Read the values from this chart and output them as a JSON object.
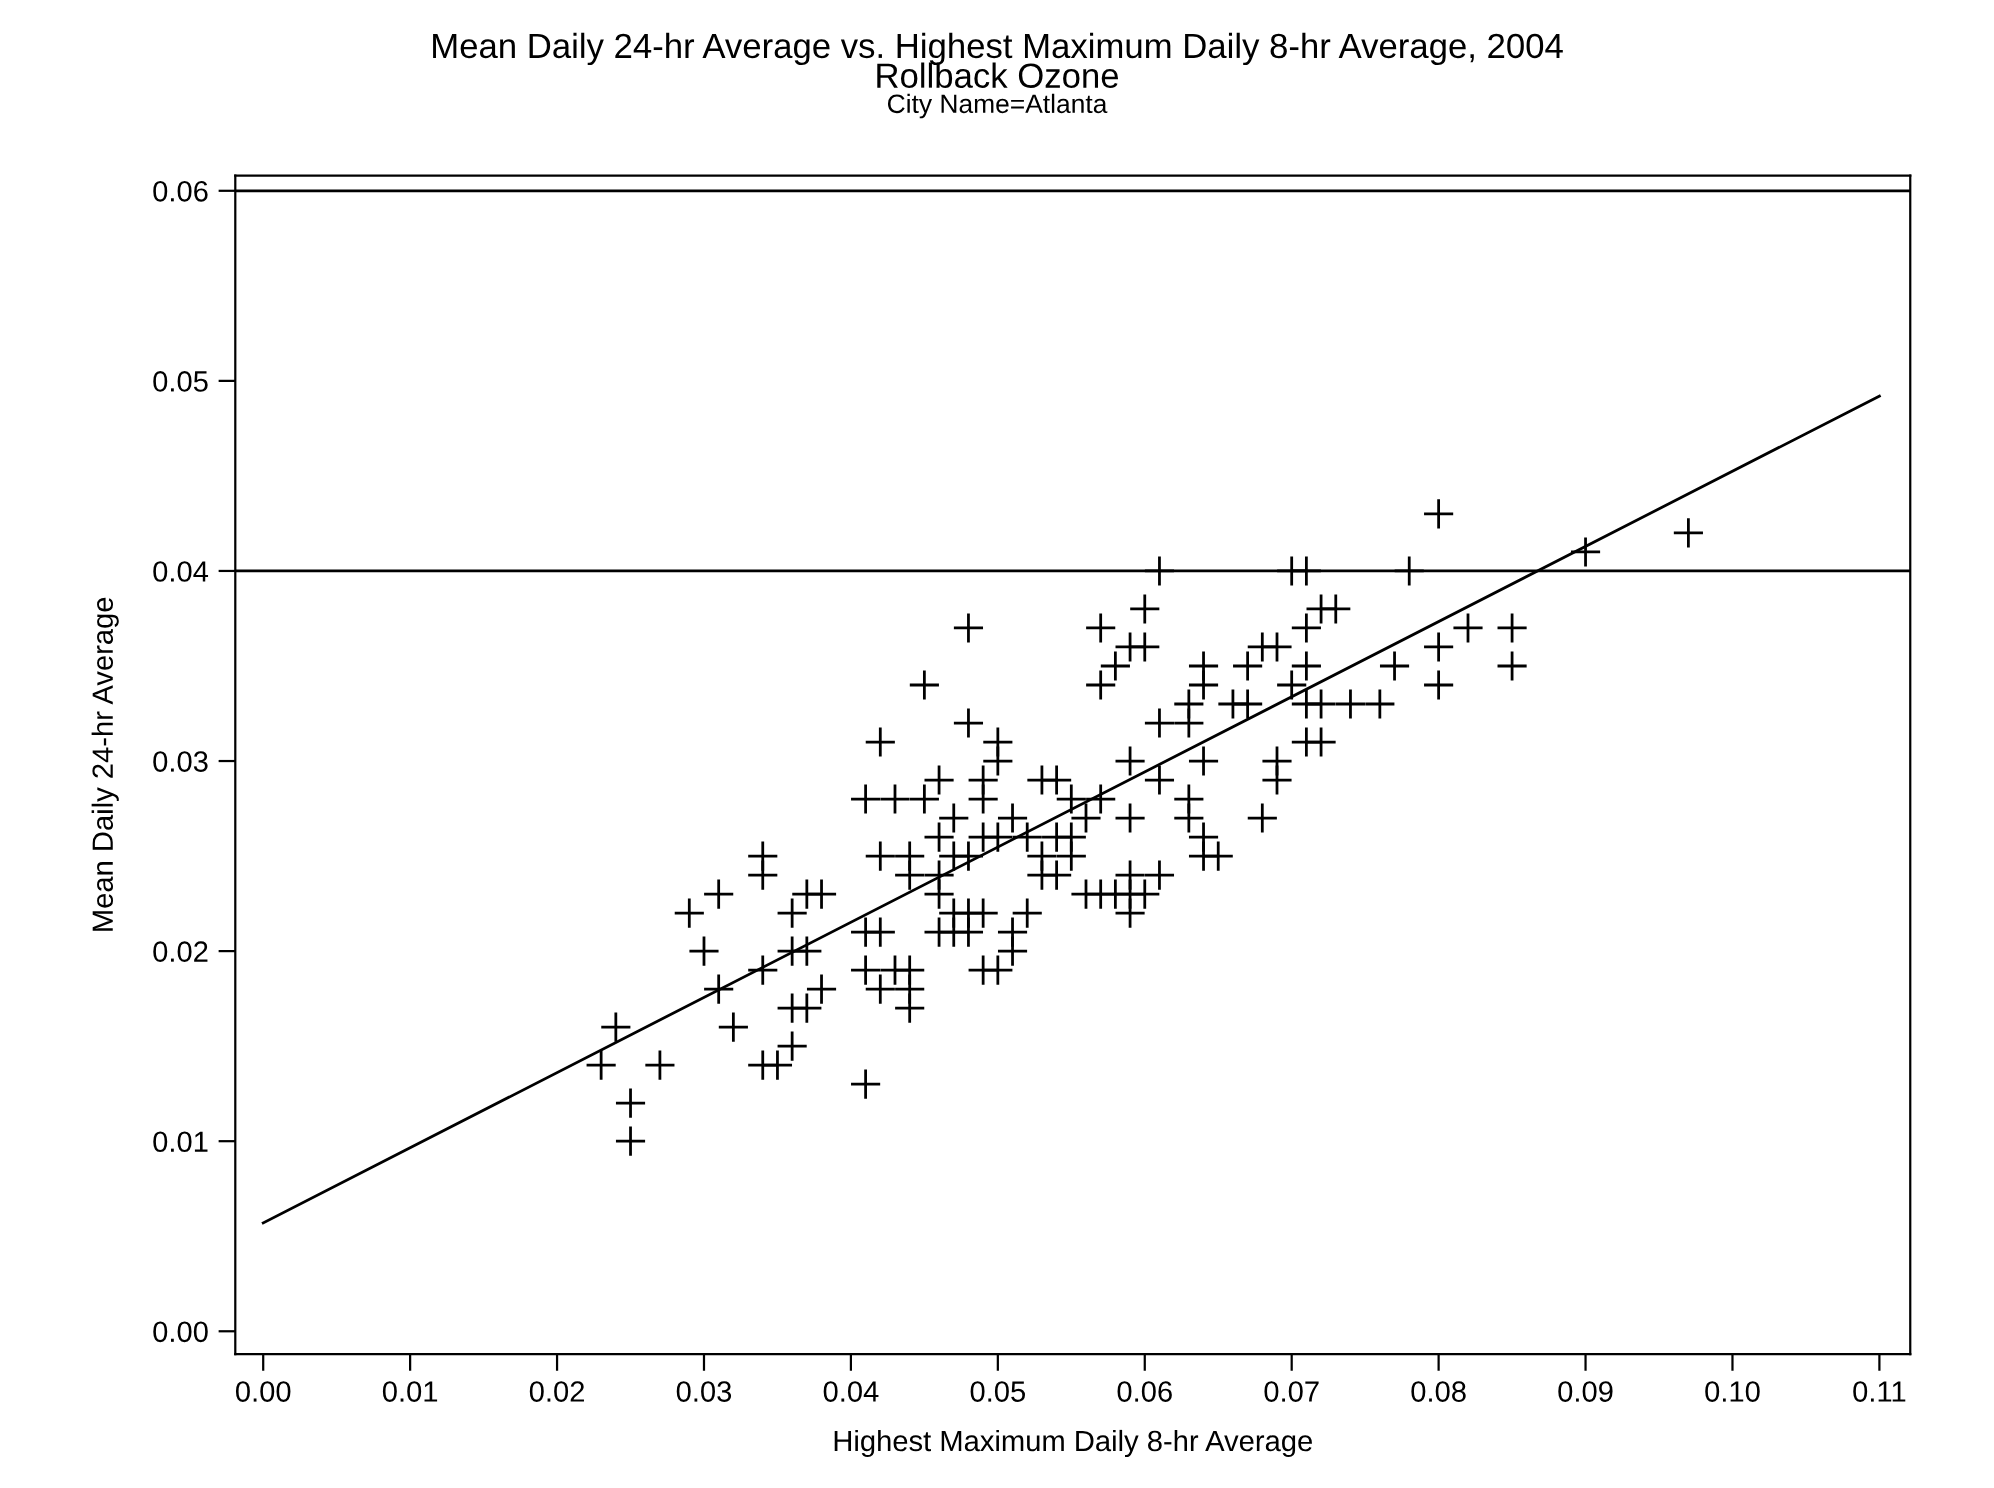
{
  "chart_data": {
    "type": "scatter",
    "title": "Mean Daily 24-hr Average vs. Highest Maximum Daily 8-hr Average, 2004",
    "subtitle": "Rollback Ozone",
    "annotations": [
      "City Name=Atlanta"
    ],
    "xlabel": "Highest Maximum Daily 8-hr Average",
    "ylabel": "Mean Daily 24-hr Average",
    "xlim": [
      -0.0019,
      0.1121
    ],
    "ylim": [
      -0.0012,
      0.0608
    ],
    "xticks": [
      {
        "value": 0,
        "label": "0.00"
      },
      {
        "value": 0.01,
        "label": "0.01"
      },
      {
        "value": 0.02,
        "label": "0.02"
      },
      {
        "value": 0.03,
        "label": "0.03"
      },
      {
        "value": 0.04,
        "label": "0.04"
      },
      {
        "value": 0.05,
        "label": "0.05"
      },
      {
        "value": 0.06,
        "label": "0.06"
      },
      {
        "value": 0.07,
        "label": "0.07"
      },
      {
        "value": 0.08,
        "label": "0.08"
      },
      {
        "value": 0.09,
        "label": "0.09"
      },
      {
        "value": 0.1,
        "label": "0.10"
      },
      {
        "value": 0.11,
        "label": "0.11"
      }
    ],
    "yticks": [
      {
        "value": 0,
        "label": "0.00"
      },
      {
        "value": 0.01,
        "label": "0.01"
      },
      {
        "value": 0.02,
        "label": "0.02"
      },
      {
        "value": 0.03,
        "label": "0.03"
      },
      {
        "value": 0.04,
        "label": "0.04"
      },
      {
        "value": 0.05,
        "label": "0.05"
      },
      {
        "value": 0.06,
        "label": "0.06"
      }
    ],
    "grid": false,
    "legend": false,
    "marker": "cross",
    "ref_lines": [
      {
        "axis": "y",
        "value": 0.04,
        "color": "#000000"
      },
      {
        "axis": "y",
        "value": 0.06,
        "color": "#000000"
      }
    ],
    "series": [
      {
        "color": "#000000",
        "x": [
          0.08,
          0.097,
          0.09,
          0.061,
          0.07,
          0.071,
          0.078,
          0.06,
          0.072,
          0.073,
          0.048,
          0.057,
          0.071,
          0.082,
          0.085,
          0.059,
          0.06,
          0.068,
          0.069,
          0.08,
          0.058,
          0.064,
          0.067,
          0.071,
          0.077,
          0.085,
          0.045,
          0.057,
          0.064,
          0.07,
          0.08,
          0.063,
          0.066,
          0.067,
          0.071,
          0.072,
          0.074,
          0.076,
          0.048,
          0.061,
          0.063,
          0.042,
          0.05,
          0.071,
          0.072,
          0.05,
          0.059,
          0.064,
          0.069,
          0.046,
          0.049,
          0.053,
          0.054,
          0.061,
          0.069,
          0.041,
          0.043,
          0.045,
          0.049,
          0.055,
          0.057,
          0.063,
          0.047,
          0.051,
          0.056,
          0.059,
          0.063,
          0.068,
          0.046,
          0.049,
          0.05,
          0.052,
          0.054,
          0.055,
          0.064,
          0.034,
          0.042,
          0.044,
          0.047,
          0.048,
          0.053,
          0.055,
          0.064,
          0.065,
          0.034,
          0.044,
          0.046,
          0.053,
          0.054,
          0.059,
          0.061,
          0.031,
          0.037,
          0.038,
          0.046,
          0.056,
          0.057,
          0.058,
          0.059,
          0.06,
          0.029,
          0.036,
          0.047,
          0.048,
          0.049,
          0.052,
          0.059,
          0.041,
          0.042,
          0.046,
          0.047,
          0.048,
          0.051,
          0.03,
          0.036,
          0.037,
          0.051,
          0.034,
          0.041,
          0.043,
          0.044,
          0.049,
          0.05,
          0.031,
          0.038,
          0.042,
          0.044,
          0.036,
          0.037,
          0.044,
          0.024,
          0.032,
          0.036,
          0.023,
          0.027,
          0.034,
          0.035,
          0.041,
          0.025,
          0.025
        ],
        "values": [
          0.043,
          0.042,
          0.041,
          0.04,
          0.04,
          0.04,
          0.04,
          0.038,
          0.038,
          0.038,
          0.037,
          0.037,
          0.037,
          0.037,
          0.037,
          0.036,
          0.036,
          0.036,
          0.036,
          0.036,
          0.035,
          0.035,
          0.035,
          0.035,
          0.035,
          0.035,
          0.034,
          0.034,
          0.034,
          0.034,
          0.034,
          0.033,
          0.033,
          0.033,
          0.033,
          0.033,
          0.033,
          0.033,
          0.032,
          0.032,
          0.032,
          0.031,
          0.031,
          0.031,
          0.031,
          0.03,
          0.03,
          0.03,
          0.03,
          0.029,
          0.029,
          0.029,
          0.029,
          0.029,
          0.029,
          0.028,
          0.028,
          0.028,
          0.028,
          0.028,
          0.028,
          0.028,
          0.027,
          0.027,
          0.027,
          0.027,
          0.027,
          0.027,
          0.026,
          0.026,
          0.026,
          0.026,
          0.026,
          0.026,
          0.026,
          0.025,
          0.025,
          0.025,
          0.025,
          0.025,
          0.025,
          0.025,
          0.025,
          0.025,
          0.024,
          0.024,
          0.024,
          0.024,
          0.024,
          0.024,
          0.024,
          0.023,
          0.023,
          0.023,
          0.023,
          0.023,
          0.023,
          0.023,
          0.023,
          0.023,
          0.022,
          0.022,
          0.022,
          0.022,
          0.022,
          0.022,
          0.022,
          0.021,
          0.021,
          0.021,
          0.021,
          0.021,
          0.021,
          0.02,
          0.02,
          0.02,
          0.02,
          0.019,
          0.019,
          0.019,
          0.019,
          0.019,
          0.019,
          0.018,
          0.018,
          0.018,
          0.018,
          0.017,
          0.017,
          0.017,
          0.016,
          0.016,
          0.015,
          0.014,
          0.014,
          0.014,
          0.014,
          0.013,
          0.012,
          0.01
        ]
      },
      {
        "type": "line",
        "marker": "none",
        "color": "#000000",
        "x": [
          0.0,
          0.11
        ],
        "values": [
          0.0057,
          0.0492
        ]
      }
    ]
  }
}
